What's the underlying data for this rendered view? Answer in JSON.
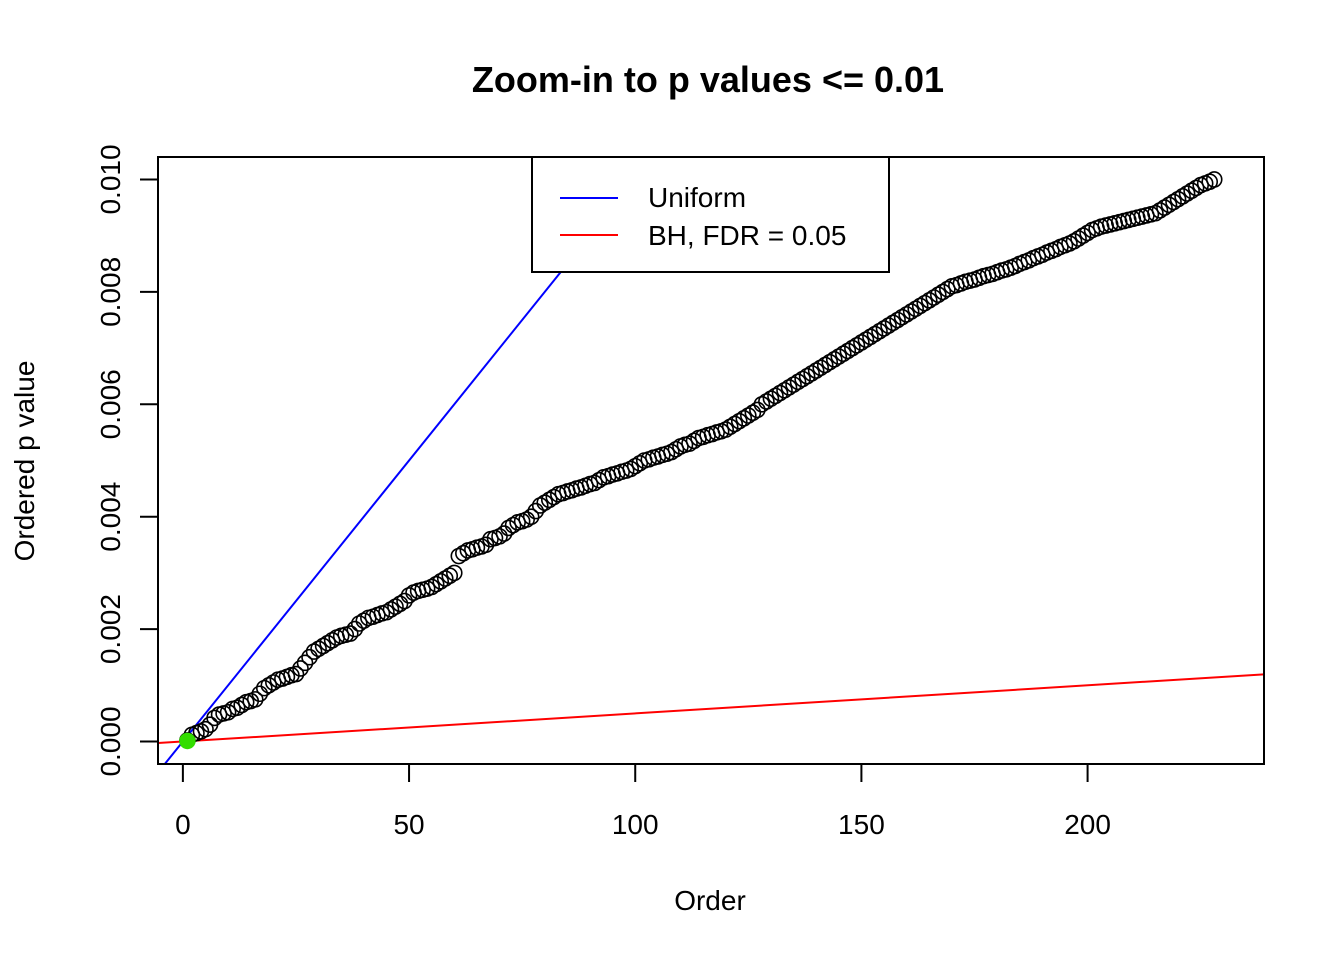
{
  "chart_data": {
    "type": "scatter",
    "title": "Zoom-in to p values <= 0.01",
    "xlabel": "Order",
    "ylabel": "Ordered p value",
    "xlim": [
      -5.5,
      239
    ],
    "ylim": [
      -0.0004,
      0.0104
    ],
    "x_ticks": [
      0,
      50,
      100,
      150,
      200
    ],
    "x_tick_labels": [
      "0",
      "50",
      "100",
      "150",
      "200"
    ],
    "y_ticks": [
      0,
      0.002,
      0.004,
      0.006,
      0.008,
      0.01
    ],
    "y_tick_labels": [
      "0.000",
      "0.002",
      "0.004",
      "0.006",
      "0.008",
      "0.010"
    ],
    "grid": false,
    "legend": {
      "placement": "top-center",
      "entries": [
        {
          "label": "Uniform",
          "color": "#0000ff"
        },
        {
          "label": "BH, FDR = 0.05",
          "color": "#ff0000"
        }
      ]
    },
    "lines": [
      {
        "name": "Uniform",
        "slope": 0.0001,
        "intercept": 0,
        "color": "#0000ff"
      },
      {
        "name": "BH, FDR = 0.05",
        "slope": 5e-06,
        "intercept": 0,
        "color": "#ff0000"
      }
    ],
    "significant_points": [
      {
        "x": 1,
        "y": 1e-05,
        "color": "#33dd00"
      }
    ],
    "series": [
      {
        "marker": "open-circle",
        "color": "#000000",
        "points": [
          [
            1,
            2e-05
          ],
          [
            2,
            0.00012
          ],
          [
            3,
            0.00015
          ],
          [
            4,
            0.00018
          ],
          [
            5,
            0.00022
          ],
          [
            6,
            0.0003
          ],
          [
            7,
            0.00042
          ],
          [
            8,
            0.00048
          ],
          [
            9,
            0.0005
          ],
          [
            10,
            0.00052
          ],
          [
            11,
            0.00058
          ],
          [
            12,
            0.0006
          ],
          [
            13,
            0.00065
          ],
          [
            14,
            0.0007
          ],
          [
            15,
            0.00072
          ],
          [
            16,
            0.00075
          ],
          [
            17,
            0.00085
          ],
          [
            18,
            0.00095
          ],
          [
            19,
            0.001
          ],
          [
            20,
            0.00105
          ],
          [
            21,
            0.0011
          ],
          [
            22,
            0.00112
          ],
          [
            23,
            0.00115
          ],
          [
            24,
            0.00118
          ],
          [
            25,
            0.0012
          ],
          [
            26,
            0.0013
          ],
          [
            27,
            0.0014
          ],
          [
            28,
            0.0015
          ],
          [
            29,
            0.0016
          ],
          [
            30,
            0.00165
          ],
          [
            31,
            0.0017
          ],
          [
            32,
            0.00175
          ],
          [
            33,
            0.0018
          ],
          [
            34,
            0.00185
          ],
          [
            35,
            0.00188
          ],
          [
            36,
            0.0019
          ],
          [
            37,
            0.00192
          ],
          [
            38,
            0.002
          ],
          [
            39,
            0.0021
          ],
          [
            40,
            0.00215
          ],
          [
            41,
            0.0022
          ],
          [
            42,
            0.00222
          ],
          [
            43,
            0.00225
          ],
          [
            44,
            0.00228
          ],
          [
            45,
            0.0023
          ],
          [
            46,
            0.00235
          ],
          [
            47,
            0.0024
          ],
          [
            48,
            0.00245
          ],
          [
            49,
            0.0025
          ],
          [
            50,
            0.0026
          ],
          [
            51,
            0.00265
          ],
          [
            52,
            0.00268
          ],
          [
            53,
            0.0027
          ],
          [
            54,
            0.00272
          ],
          [
            55,
            0.00275
          ],
          [
            56,
            0.0028
          ],
          [
            57,
            0.00285
          ],
          [
            58,
            0.0029
          ],
          [
            59,
            0.00295
          ],
          [
            60,
            0.003
          ],
          [
            61,
            0.0033
          ],
          [
            62,
            0.00335
          ],
          [
            63,
            0.0034
          ],
          [
            64,
            0.00342
          ],
          [
            65,
            0.00345
          ],
          [
            66,
            0.00347
          ],
          [
            67,
            0.0035
          ],
          [
            68,
            0.0036
          ],
          [
            69,
            0.00362
          ],
          [
            70,
            0.00365
          ],
          [
            71,
            0.0037
          ],
          [
            72,
            0.0038
          ],
          [
            73,
            0.00385
          ],
          [
            74,
            0.0039
          ],
          [
            75,
            0.00392
          ],
          [
            76,
            0.00395
          ],
          [
            77,
            0.004
          ],
          [
            78,
            0.0041
          ],
          [
            79,
            0.0042
          ],
          [
            80,
            0.00425
          ],
          [
            81,
            0.0043
          ],
          [
            82,
            0.00435
          ],
          [
            83,
            0.0044
          ],
          [
            84,
            0.00442
          ],
          [
            85,
            0.00445
          ],
          [
            86,
            0.00447
          ],
          [
            87,
            0.0045
          ],
          [
            88,
            0.00452
          ],
          [
            89,
            0.00455
          ],
          [
            90,
            0.00458
          ],
          [
            91,
            0.0046
          ],
          [
            92,
            0.00465
          ],
          [
            93,
            0.0047
          ],
          [
            94,
            0.00472
          ],
          [
            95,
            0.00475
          ],
          [
            96,
            0.00477
          ],
          [
            97,
            0.0048
          ],
          [
            98,
            0.00482
          ],
          [
            99,
            0.00485
          ],
          [
            100,
            0.0049
          ],
          [
            101,
            0.00495
          ],
          [
            102,
            0.005
          ],
          [
            103,
            0.00502
          ],
          [
            104,
            0.00505
          ],
          [
            105,
            0.00507
          ],
          [
            106,
            0.0051
          ],
          [
            107,
            0.00512
          ],
          [
            108,
            0.00515
          ],
          [
            109,
            0.0052
          ],
          [
            110,
            0.00525
          ],
          [
            111,
            0.00528
          ],
          [
            112,
            0.0053
          ],
          [
            113,
            0.00535
          ],
          [
            114,
            0.0054
          ],
          [
            115,
            0.00542
          ],
          [
            116,
            0.00545
          ],
          [
            117,
            0.00547
          ],
          [
            118,
            0.0055
          ],
          [
            119,
            0.00552
          ],
          [
            120,
            0.00555
          ],
          [
            121,
            0.0056
          ],
          [
            122,
            0.00565
          ],
          [
            123,
            0.0057
          ],
          [
            124,
            0.00575
          ],
          [
            125,
            0.0058
          ],
          [
            126,
            0.00585
          ],
          [
            127,
            0.0059
          ],
          [
            128,
            0.006
          ],
          [
            129,
            0.00605
          ],
          [
            130,
            0.0061
          ],
          [
            131,
            0.00615
          ],
          [
            132,
            0.0062
          ],
          [
            133,
            0.00625
          ],
          [
            134,
            0.0063
          ],
          [
            135,
            0.00635
          ],
          [
            136,
            0.0064
          ],
          [
            137,
            0.00645
          ],
          [
            138,
            0.0065
          ],
          [
            139,
            0.00655
          ],
          [
            140,
            0.0066
          ],
          [
            141,
            0.00665
          ],
          [
            142,
            0.0067
          ],
          [
            143,
            0.00675
          ],
          [
            144,
            0.0068
          ],
          [
            145,
            0.00685
          ],
          [
            146,
            0.0069
          ],
          [
            147,
            0.00695
          ],
          [
            148,
            0.007
          ],
          [
            149,
            0.00705
          ],
          [
            150,
            0.0071
          ],
          [
            151,
            0.00715
          ],
          [
            152,
            0.0072
          ],
          [
            153,
            0.00725
          ],
          [
            154,
            0.0073
          ],
          [
            155,
            0.00735
          ],
          [
            156,
            0.0074
          ],
          [
            157,
            0.00745
          ],
          [
            158,
            0.0075
          ],
          [
            159,
            0.00755
          ],
          [
            160,
            0.0076
          ],
          [
            161,
            0.00765
          ],
          [
            162,
            0.0077
          ],
          [
            163,
            0.00775
          ],
          [
            164,
            0.0078
          ],
          [
            165,
            0.00785
          ],
          [
            166,
            0.0079
          ],
          [
            167,
            0.00795
          ],
          [
            168,
            0.008
          ],
          [
            169,
            0.00805
          ],
          [
            170,
            0.0081
          ],
          [
            171,
            0.00812
          ],
          [
            172,
            0.00815
          ],
          [
            173,
            0.00818
          ],
          [
            174,
            0.0082
          ],
          [
            175,
            0.00822
          ],
          [
            176,
            0.00825
          ],
          [
            177,
            0.00828
          ],
          [
            178,
            0.0083
          ],
          [
            179,
            0.00832
          ],
          [
            180,
            0.00835
          ],
          [
            181,
            0.00838
          ],
          [
            182,
            0.0084
          ],
          [
            183,
            0.00843
          ],
          [
            184,
            0.00846
          ],
          [
            185,
            0.0085
          ],
          [
            186,
            0.00853
          ],
          [
            187,
            0.00856
          ],
          [
            188,
            0.0086
          ],
          [
            189,
            0.00863
          ],
          [
            190,
            0.00866
          ],
          [
            191,
            0.0087
          ],
          [
            192,
            0.00873
          ],
          [
            193,
            0.00876
          ],
          [
            194,
            0.0088
          ],
          [
            195,
            0.00883
          ],
          [
            196,
            0.00886
          ],
          [
            197,
            0.0089
          ],
          [
            198,
            0.00895
          ],
          [
            199,
            0.009
          ],
          [
            200,
            0.00905
          ],
          [
            201,
            0.0091
          ],
          [
            202,
            0.00913
          ],
          [
            203,
            0.00916
          ],
          [
            204,
            0.00918
          ],
          [
            205,
            0.0092
          ],
          [
            206,
            0.00922
          ],
          [
            207,
            0.00924
          ],
          [
            208,
            0.00926
          ],
          [
            209,
            0.00928
          ],
          [
            210,
            0.0093
          ],
          [
            211,
            0.00932
          ],
          [
            212,
            0.00934
          ],
          [
            213,
            0.00936
          ],
          [
            214,
            0.00938
          ],
          [
            215,
            0.0094
          ],
          [
            216,
            0.00945
          ],
          [
            217,
            0.0095
          ],
          [
            218,
            0.00955
          ],
          [
            219,
            0.0096
          ],
          [
            220,
            0.00965
          ],
          [
            221,
            0.0097
          ],
          [
            222,
            0.00975
          ],
          [
            223,
            0.0098
          ],
          [
            224,
            0.00985
          ],
          [
            225,
            0.0099
          ],
          [
            226,
            0.00993
          ],
          [
            227,
            0.00996
          ],
          [
            228,
            0.01
          ]
        ]
      }
    ]
  }
}
